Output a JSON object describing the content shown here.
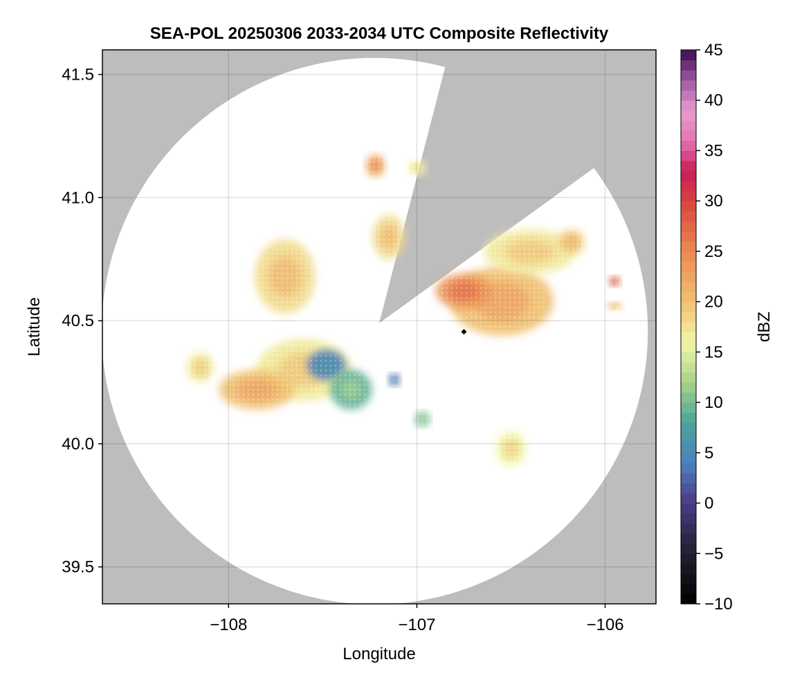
{
  "chart_data": {
    "type": "heatmap",
    "title": "SEA-POL 20250306 2033-2034 UTC Composite Reflectivity",
    "xlabel": "Longitude",
    "ylabel": "Latitude",
    "xlim": [
      -108.67,
      -105.73
    ],
    "ylim": [
      39.35,
      41.6
    ],
    "x_ticks": [
      {
        "value": -108,
        "label": "−108"
      },
      {
        "value": -107,
        "label": "−107"
      },
      {
        "value": -106,
        "label": "−106"
      }
    ],
    "y_ticks": [
      {
        "value": 39.5,
        "label": "39.5"
      },
      {
        "value": 40.0,
        "label": "40.0"
      },
      {
        "value": 40.5,
        "label": "40.5"
      },
      {
        "value": 41.0,
        "label": "41.0"
      },
      {
        "value": 41.5,
        "label": "41.5"
      }
    ],
    "grid": true,
    "background_color": "#bdbdbd",
    "radar_site": {
      "lon": -106.75,
      "lat": 40.455,
      "marker": "diamond"
    },
    "coverage": {
      "center_lon": -107.2,
      "center_lat": 40.49,
      "radius_deg_lat": 1.11,
      "blocked_sector": {
        "start_lon": -106.85,
        "start_lat": 41.53,
        "end_lon": -106.06,
        "end_lat": 41.12
      }
    },
    "colorbar": {
      "label": "dBZ",
      "vmin": -10,
      "vmax": 45,
      "ticks": [
        {
          "value": -10,
          "label": "−10"
        },
        {
          "value": -5,
          "label": "−5"
        },
        {
          "value": 0,
          "label": "0"
        },
        {
          "value": 5,
          "label": "5"
        },
        {
          "value": 10,
          "label": "10"
        },
        {
          "value": 15,
          "label": "15"
        },
        {
          "value": 20,
          "label": "20"
        },
        {
          "value": 25,
          "label": "25"
        },
        {
          "value": 30,
          "label": "30"
        },
        {
          "value": 35,
          "label": "35"
        },
        {
          "value": 40,
          "label": "40"
        },
        {
          "value": 45,
          "label": "45"
        }
      ],
      "color_stops": [
        {
          "value": -10,
          "color": "#000000"
        },
        {
          "value": -5,
          "color": "#221f2e"
        },
        {
          "value": 0,
          "color": "#4a3c86"
        },
        {
          "value": 4,
          "color": "#4f7fc0"
        },
        {
          "value": 8,
          "color": "#4aa39a"
        },
        {
          "value": 12,
          "color": "#a6d38a"
        },
        {
          "value": 16,
          "color": "#f3f6a8"
        },
        {
          "value": 20,
          "color": "#f0c070"
        },
        {
          "value": 25,
          "color": "#ec8a52"
        },
        {
          "value": 30,
          "color": "#d6443e"
        },
        {
          "value": 33,
          "color": "#c81c59"
        },
        {
          "value": 36,
          "color": "#e373b3"
        },
        {
          "value": 39,
          "color": "#e99ccb"
        },
        {
          "value": 42,
          "color": "#9e58a6"
        },
        {
          "value": 45,
          "color": "#3b0b4a"
        }
      ]
    },
    "echoes": [
      {
        "lon": -107.7,
        "lat": 40.68,
        "w": 0.32,
        "h": 0.3,
        "dbz": 18
      },
      {
        "lon": -107.6,
        "lat": 40.3,
        "w": 0.5,
        "h": 0.25,
        "dbz": 17
      },
      {
        "lon": -107.48,
        "lat": 40.32,
        "w": 0.2,
        "h": 0.12,
        "dbz": 4
      },
      {
        "lon": -107.85,
        "lat": 40.22,
        "w": 0.4,
        "h": 0.16,
        "dbz": 20
      },
      {
        "lon": -107.35,
        "lat": 40.22,
        "w": 0.22,
        "h": 0.16,
        "dbz": 9
      },
      {
        "lon": -108.15,
        "lat": 40.31,
        "w": 0.14,
        "h": 0.12,
        "dbz": 17
      },
      {
        "lon": -107.15,
        "lat": 40.84,
        "w": 0.17,
        "h": 0.18,
        "dbz": 18
      },
      {
        "lon": -107.22,
        "lat": 41.13,
        "w": 0.1,
        "h": 0.09,
        "dbz": 22
      },
      {
        "lon": -107.0,
        "lat": 41.12,
        "w": 0.1,
        "h": 0.06,
        "dbz": 16
      },
      {
        "lon": -106.55,
        "lat": 40.58,
        "w": 0.55,
        "h": 0.28,
        "dbz": 20
      },
      {
        "lon": -106.4,
        "lat": 40.78,
        "w": 0.48,
        "h": 0.18,
        "dbz": 17
      },
      {
        "lon": -106.75,
        "lat": 40.62,
        "w": 0.3,
        "h": 0.14,
        "dbz": 24
      },
      {
        "lon": -106.18,
        "lat": 40.82,
        "w": 0.14,
        "h": 0.1,
        "dbz": 19
      },
      {
        "lon": -106.5,
        "lat": 39.98,
        "w": 0.16,
        "h": 0.14,
        "dbz": 16
      },
      {
        "lon": -106.97,
        "lat": 40.1,
        "w": 0.08,
        "h": 0.06,
        "dbz": 10
      },
      {
        "lon": -107.12,
        "lat": 40.26,
        "w": 0.06,
        "h": 0.05,
        "dbz": 3
      },
      {
        "lon": -105.95,
        "lat": 40.66,
        "w": 0.06,
        "h": 0.04,
        "dbz": 28
      },
      {
        "lon": -105.95,
        "lat": 40.56,
        "w": 0.08,
        "h": 0.03,
        "dbz": 20
      }
    ]
  }
}
